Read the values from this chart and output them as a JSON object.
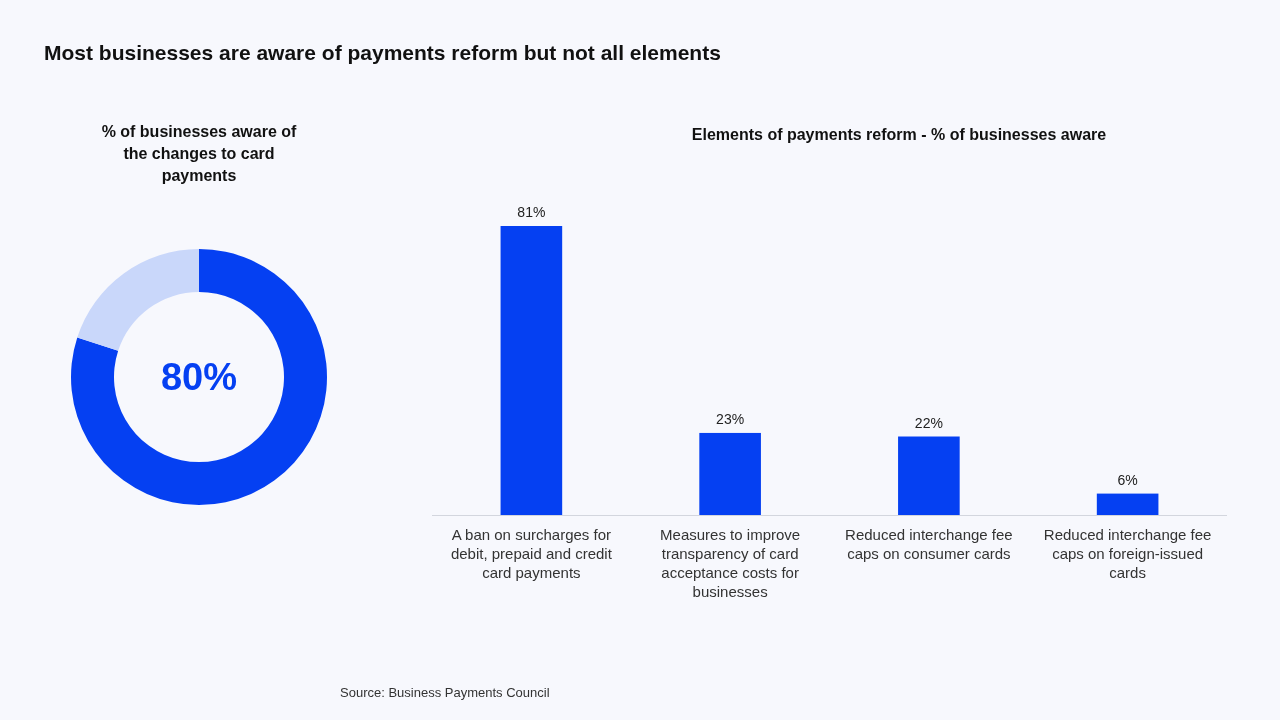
{
  "chart_data": [
    {
      "type": "donut",
      "title": "Most businesses are aware of payments reform but not all elements",
      "subtitle": "% of businesses aware of the changes to card payments",
      "categories": [
        null,
        null
      ],
      "values": [
        80,
        20
      ],
      "colors": [
        "#0540f2",
        "#c9d7fa"
      ],
      "annotations": [
        "80%"
      ]
    },
    {
      "type": "bar",
      "title": "Elements of payments reform - % of businesses aware",
      "categories": [
        "A ban on surcharges for debit, prepaid and credit card payments",
        "Measures to improve transparency of card acceptance costs for businesses",
        "Reduced interchange fee caps on consumer cards",
        "Reduced interchange fee caps on foreign-issued cards"
      ],
      "values": [
        81,
        23,
        22,
        6
      ],
      "color": "#0540f2",
      "value_labels": [
        "81%",
        "23%",
        "22%",
        "6%"
      ],
      "annotations": [
        "Source: Business Payments Council"
      ]
    }
  ]
}
